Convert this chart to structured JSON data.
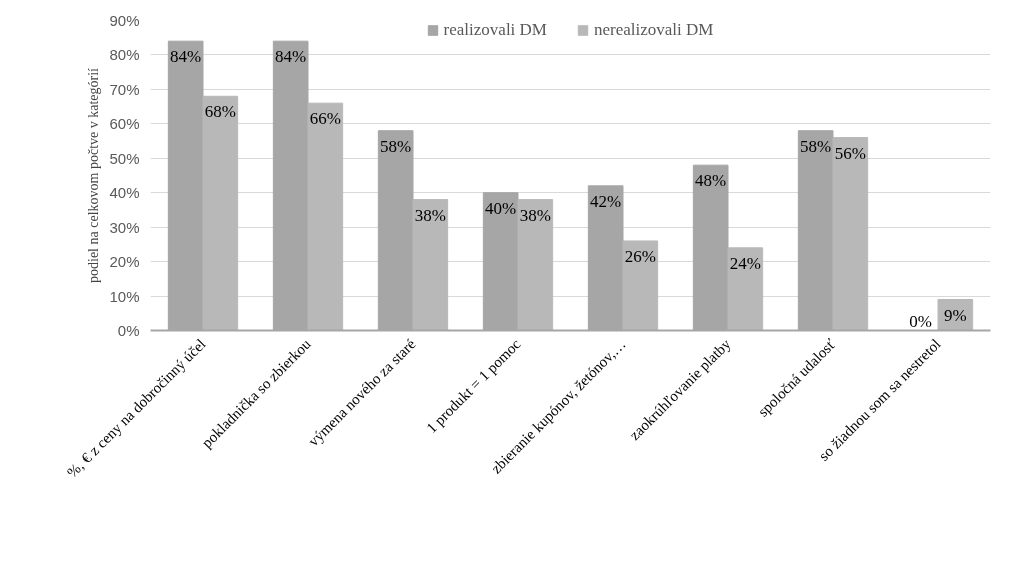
{
  "chart_data": {
    "type": "bar",
    "ylabel": "podiel na celkovom počtve v kategórií",
    "categories": [
      "%, € z ceny na dobročinný účel",
      "pokladnička so zbierkou",
      "výmena nového za staré",
      "1 produkt = 1 pomoc",
      "zbieranie kupónov, žetónov,…",
      "zaokrúhľovanie platby",
      "spoločná udalosť",
      "so žiadnou som sa nestretol"
    ],
    "series": [
      {
        "name": "realizovali DM",
        "color": "#a6a6a6",
        "values": [
          84,
          84,
          58,
          40,
          42,
          48,
          58,
          0
        ],
        "value_labels": [
          "84%",
          "84%",
          "58%",
          "40%",
          "42%",
          "48%",
          "58%",
          "0%"
        ]
      },
      {
        "name": "nerealizovali DM",
        "color": "#b8b8b8",
        "values": [
          68,
          66,
          38,
          38,
          26,
          24,
          56,
          9
        ],
        "value_labels": [
          "68%",
          "66%",
          "38%",
          "38%",
          "26%",
          "24%",
          "56%",
          "9%"
        ]
      }
    ],
    "ylim": [
      0,
      90
    ],
    "yticks": [
      {
        "value": 0,
        "label": "0%"
      },
      {
        "value": 10,
        "label": "10%"
      },
      {
        "value": 20,
        "label": "20%"
      },
      {
        "value": 30,
        "label": "30%"
      },
      {
        "value": 40,
        "label": "40%"
      },
      {
        "value": 50,
        "label": "50%"
      },
      {
        "value": 60,
        "label": "60%"
      },
      {
        "value": 70,
        "label": "70%"
      },
      {
        "value": 80,
        "label": "80%"
      },
      {
        "value": 90,
        "label": "90%"
      }
    ],
    "grid": "y",
    "legend": "top"
  }
}
